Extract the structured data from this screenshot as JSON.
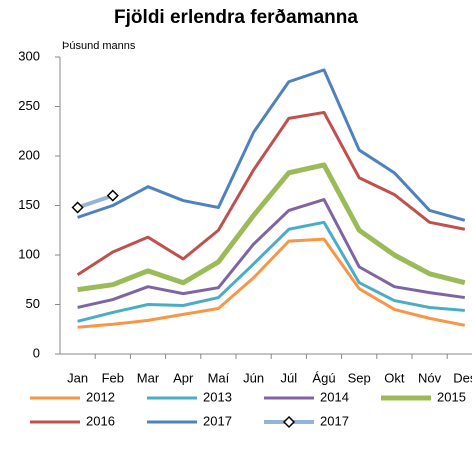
{
  "chart_data": {
    "type": "line",
    "title": "Fjöldi erlendra ferðamanna",
    "y_label": "Þúsund manns",
    "categories": [
      "Jan",
      "Feb",
      "Mar",
      "Apr",
      "Maí",
      "Jún",
      "Júl",
      "Ágú",
      "Sep",
      "Okt",
      "Nóv",
      "Des"
    ],
    "ylim": [
      0,
      300
    ],
    "yticks": [
      0,
      50,
      100,
      150,
      200,
      250,
      300
    ],
    "grid": false,
    "series": [
      {
        "name": "2012",
        "color": "#f79646",
        "line_width": 3,
        "values": [
          27,
          30,
          34,
          40,
          46,
          77,
          114,
          116,
          66,
          45,
          36,
          29
        ]
      },
      {
        "name": "2013",
        "color": "#4bacc6",
        "line_width": 3,
        "values": [
          33,
          42,
          50,
          49,
          57,
          91,
          126,
          133,
          72,
          54,
          47,
          44
        ]
      },
      {
        "name": "2014",
        "color": "#8064a2",
        "line_width": 3,
        "values": [
          47,
          55,
          68,
          61,
          67,
          111,
          145,
          156,
          88,
          68,
          62,
          57
        ]
      },
      {
        "name": "2015",
        "color": "#9bbb59",
        "line_width": 5,
        "values": [
          65,
          70,
          84,
          72,
          93,
          140,
          183,
          191,
          125,
          100,
          81,
          72
        ]
      },
      {
        "name": "2016",
        "color": "#c0504d",
        "line_width": 3,
        "values": [
          80,
          103,
          118,
          96,
          125,
          186,
          238,
          244,
          178,
          161,
          133,
          126
        ]
      },
      {
        "name": "2017",
        "color": "#4f81bd",
        "line_width": 3,
        "values": [
          138,
          150,
          169,
          155,
          148,
          224,
          275,
          287,
          206,
          183,
          145,
          135
        ]
      },
      {
        "name": "2017",
        "color": "#95b3d7",
        "line_width": 4,
        "marker": "diamond",
        "values": [
          148,
          160,
          null,
          null,
          null,
          null,
          null,
          null,
          null,
          null,
          null,
          null
        ]
      }
    ]
  }
}
